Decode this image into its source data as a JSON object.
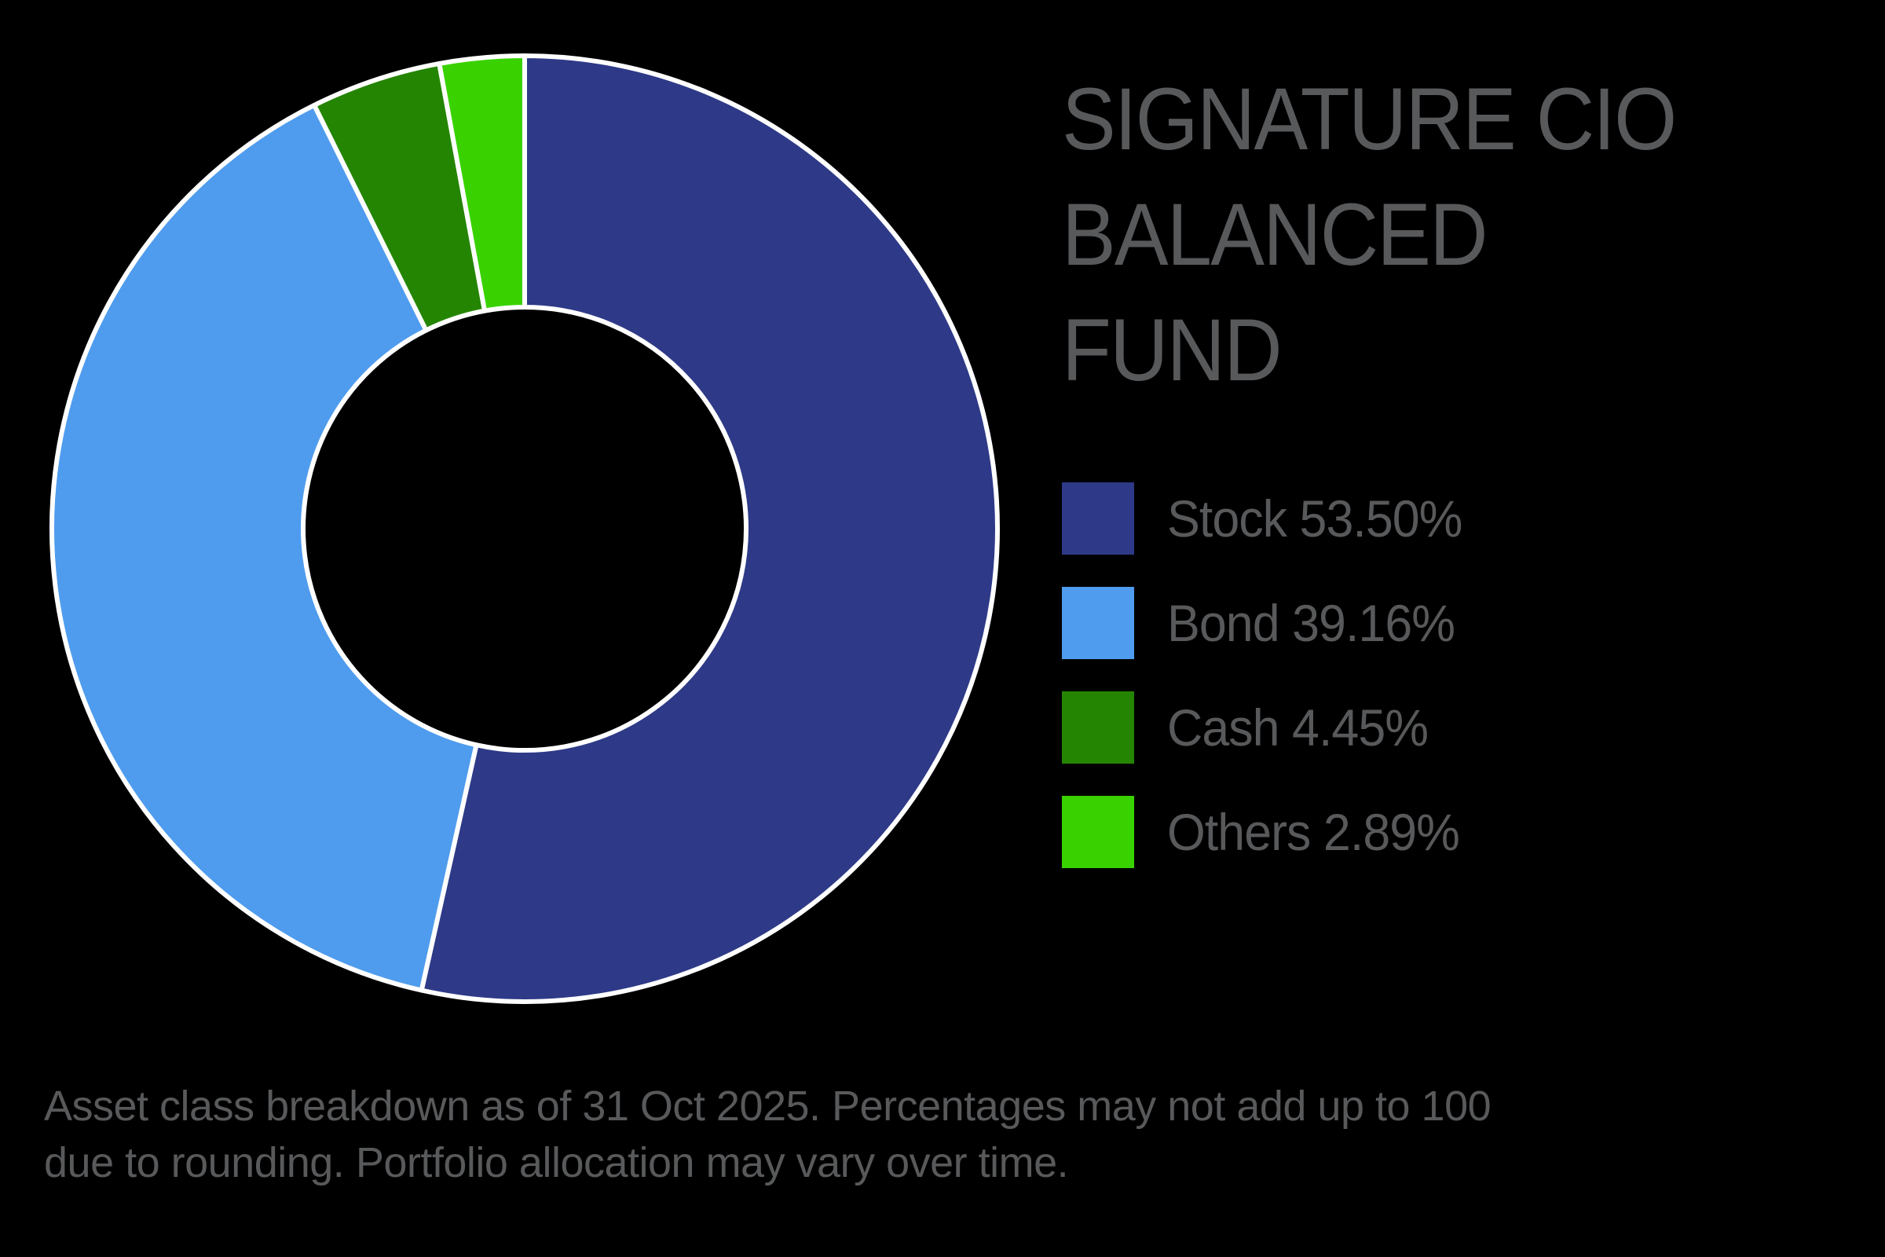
{
  "title": {
    "lines": [
      "SIGNATURE CIO",
      "BALANCED",
      "FUND"
    ]
  },
  "legend": {
    "items": [
      {
        "label": "Stock 53.50%",
        "color": "#2e3a87"
      },
      {
        "label": "Bond 39.16%",
        "color": "#4f9cee"
      },
      {
        "label": "Cash 4.45%",
        "color": "#248502"
      },
      {
        "label": "Others 2.89%",
        "color": "#39d200"
      }
    ]
  },
  "footnote": {
    "lines": [
      "Asset class breakdown as of 31 Oct 2025. Percentages may not add up to 100",
      "due to rounding. Portfolio allocation may vary over time."
    ]
  },
  "colors": {
    "background": "#000000",
    "text": "#58595b",
    "separator": "#ffffff"
  },
  "chart_data": {
    "type": "pie",
    "variant": "donut",
    "title": "SIGNATURE CIO BALANCED FUND",
    "categories": [
      "Stock",
      "Bond",
      "Cash",
      "Others"
    ],
    "values": [
      53.5,
      39.16,
      4.45,
      2.89
    ],
    "unit": "%",
    "colors": [
      "#2e3a87",
      "#4f9cee",
      "#248502",
      "#39d200"
    ],
    "start_angle_deg": 0,
    "direction": "clockwise",
    "legend_position": "right",
    "annotation": "Asset class breakdown as of 31 Oct 2025. Percentages may not add up to 100 due to rounding. Portfolio allocation may vary over time."
  }
}
